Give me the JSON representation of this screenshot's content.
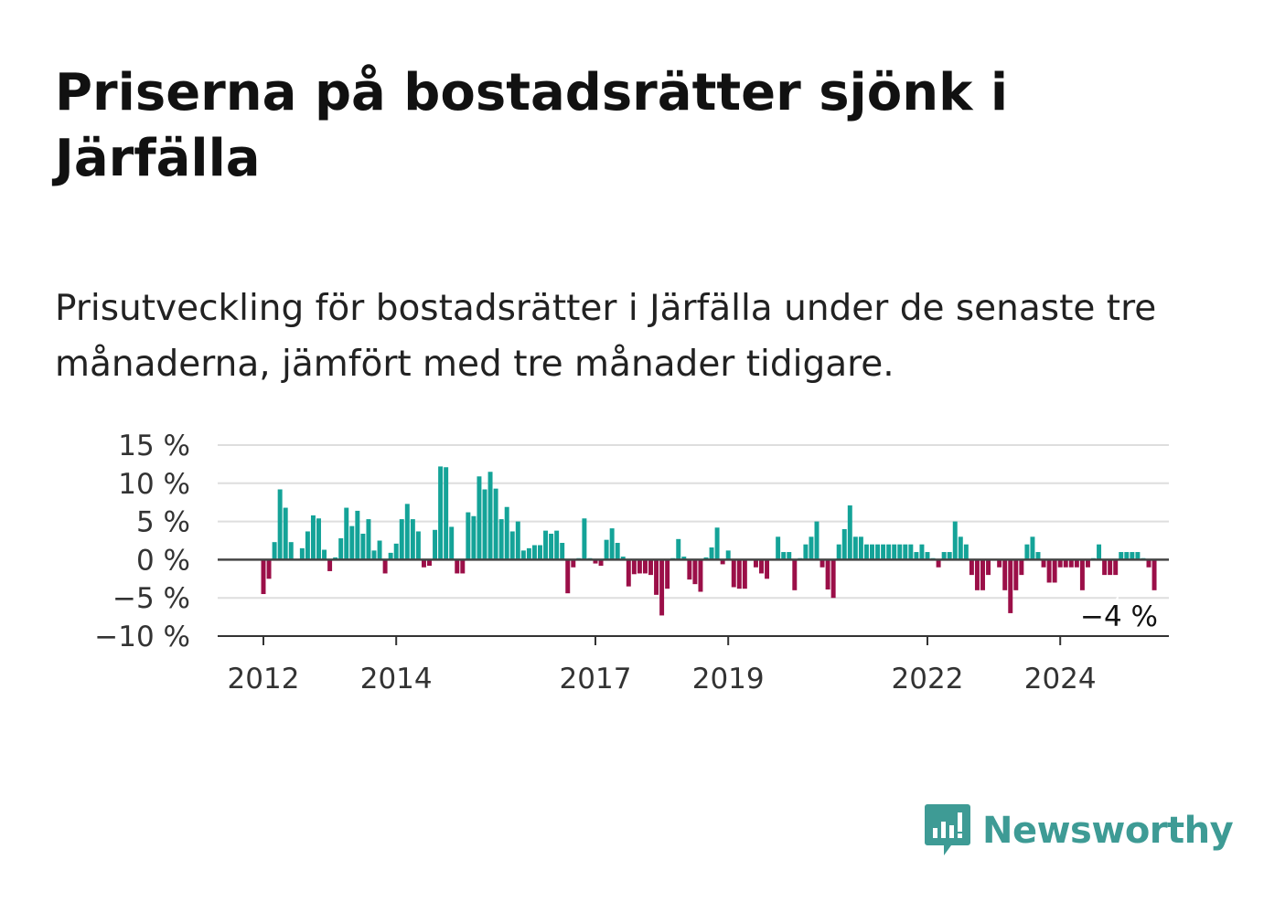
{
  "header": {
    "title": "Priserna på bostadsrätter sjönk i Järfälla",
    "subtitle": "Prisutveckling för bostadsrätter i Järfälla under de senaste tre månaderna, jämfört med tre månader tidigare."
  },
  "brand": {
    "name": "Newsworthy",
    "icon": "newsworthy-logo-icon",
    "color": "#3e9b95"
  },
  "chart_data": {
    "type": "bar",
    "title": "Priserna på bostadsrätter sjönk i Järfälla",
    "subtitle": "Prisutveckling för bostadsrätter i Järfälla under de senaste tre månaderna, jämfört med tre månader tidigare.",
    "xlabel": "",
    "ylabel": "",
    "ylim": [
      -10,
      15
    ],
    "y_ticks": [
      {
        "value": 15,
        "label": "15 %"
      },
      {
        "value": 10,
        "label": "10 %"
      },
      {
        "value": 5,
        "label": "5 %"
      },
      {
        "value": 0,
        "label": "0 %"
      },
      {
        "value": -5,
        "label": "−5 %"
      },
      {
        "value": -10,
        "label": "−10 %"
      }
    ],
    "x_ticks": [
      {
        "year": 2012,
        "label": "2012"
      },
      {
        "year": 2014,
        "label": "2014"
      },
      {
        "year": 2017,
        "label": "2017"
      },
      {
        "year": 2019,
        "label": "2019"
      },
      {
        "year": 2022,
        "label": "2022"
      },
      {
        "year": 2024,
        "label": "2024"
      }
    ],
    "start": "2012-01",
    "positive_color": "#14a398",
    "negative_color": "#9b0f48",
    "grid": true,
    "last_value_label": "−4 %",
    "values": [
      -4.5,
      -2.5,
      2.3,
      9.2,
      6.8,
      2.3,
      0,
      1.5,
      3.7,
      5.8,
      5.4,
      1.3,
      -1.5,
      0.3,
      2.8,
      6.8,
      4.4,
      6.4,
      3.4,
      5.3,
      1.2,
      2.5,
      -1.8,
      0.9,
      2.1,
      5.3,
      7.3,
      5.3,
      3.7,
      -1,
      -0.8,
      3.9,
      12.2,
      12.1,
      4.3,
      -1.8,
      -1.8,
      6.2,
      5.7,
      10.9,
      9.2,
      11.5,
      9.3,
      5.3,
      6.9,
      3.7,
      5,
      1.2,
      1.5,
      1.9,
      1.9,
      3.8,
      3.4,
      3.8,
      2.2,
      -4.4,
      -1,
      0.2,
      5.4,
      0.2,
      -0.5,
      -0.8,
      2.6,
      4.1,
      2.2,
      0.4,
      -3.5,
      -1.9,
      -1.8,
      -1.8,
      -2,
      -4.6,
      -7.3,
      -3.8,
      0.2,
      2.7,
      0.4,
      -2.6,
      -3.2,
      -4.2,
      0.3,
      1.6,
      4.2,
      -0.6,
      1.2,
      -3.6,
      -3.8,
      -3.8,
      0,
      -1,
      -1.8,
      -2.5,
      0.1,
      3,
      1,
      1,
      -4,
      0.2,
      2,
      3,
      5,
      -1,
      -3.9,
      -5,
      2,
      4,
      7.1,
      3,
      3,
      2,
      2,
      2,
      2,
      2,
      2,
      2,
      2,
      2,
      1,
      2,
      1,
      0.2,
      -1,
      1,
      1,
      5,
      3,
      2,
      -2,
      -4,
      -4,
      -2,
      0,
      -1,
      -4,
      -7,
      -4,
      -2,
      2,
      3,
      1,
      -1,
      -3,
      -3,
      -1,
      -1,
      -1,
      -1,
      -4,
      -1,
      0.2,
      2,
      -2,
      -2,
      -2,
      1,
      1,
      1,
      1,
      0.2,
      -1,
      -4
    ]
  }
}
